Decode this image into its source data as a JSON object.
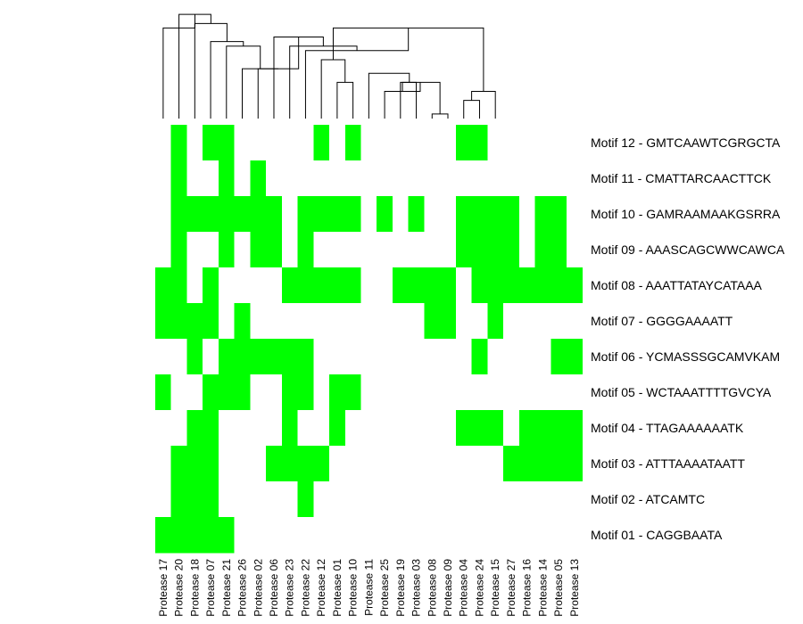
{
  "chart_data": {
    "type": "heatmap",
    "title": "",
    "xlabel": "",
    "ylabel": "",
    "colors": {
      "present": "#00ff00",
      "absent": "#ffffff",
      "dendrogram": "#000000"
    },
    "columns": [
      "Protease 17",
      "Protease 20",
      "Protease 18",
      "Protease 07",
      "Protease 21",
      "Protease 26",
      "Protease 02",
      "Protease 06",
      "Protease 23",
      "Protease 22",
      "Protease 12",
      "Protease 01",
      "Protease 10",
      "Protease 11",
      "Protease 25",
      "Protease 19",
      "Protease 03",
      "Protease 08",
      "Protease 09",
      "Protease 04",
      "Protease 24",
      "Protease 15",
      "Protease 27",
      "Protease 16",
      "Protease 14",
      "Protease 05",
      "Protease 13"
    ],
    "rows": [
      "Motif 12 - GMTCAAWTCGRGCTA",
      "Motif 11 - CMATTARCAACTTCK",
      "Motif 10 - GAMRAAMAAKGSRRA",
      "Motif 09 - AAASCAGCWWCAWCA",
      "Motif 08 - AAATTATAYCATAAA",
      "Motif 07 - GGGGAAAATT",
      "Motif 06 - YCMASSSGCAMVKAM",
      "Motif 05 - WCTAAATTTTGVCYA",
      "Motif 04 - TTAGAAAAAATK",
      "Motif 03 - ATTTAAAATAATT",
      "Motif 02 - ATCAMTC",
      "Motif 01 - CAGGBAATA"
    ],
    "matrix": [
      [
        0,
        1,
        0,
        1,
        1,
        0,
        0,
        0,
        0,
        0,
        1,
        0,
        1,
        0,
        0,
        0,
        0,
        0,
        0,
        1,
        1,
        0,
        0,
        0,
        0,
        0,
        0
      ],
      [
        0,
        1,
        0,
        0,
        1,
        0,
        1,
        0,
        0,
        0,
        0,
        0,
        0,
        0,
        0,
        0,
        0,
        0,
        0,
        0,
        0,
        0,
        0,
        0,
        0,
        0,
        0
      ],
      [
        0,
        1,
        1,
        1,
        1,
        1,
        1,
        1,
        0,
        1,
        1,
        1,
        1,
        0,
        1,
        0,
        1,
        0,
        0,
        1,
        1,
        1,
        1,
        0,
        1,
        1,
        0
      ],
      [
        0,
        1,
        0,
        0,
        1,
        0,
        1,
        1,
        0,
        1,
        0,
        0,
        0,
        0,
        0,
        0,
        0,
        0,
        0,
        1,
        1,
        1,
        1,
        0,
        1,
        1,
        0
      ],
      [
        1,
        1,
        0,
        1,
        0,
        0,
        0,
        0,
        1,
        1,
        1,
        1,
        1,
        0,
        0,
        1,
        1,
        1,
        1,
        0,
        1,
        1,
        1,
        1,
        1,
        1,
        1
      ],
      [
        1,
        1,
        1,
        1,
        0,
        1,
        0,
        0,
        0,
        0,
        0,
        0,
        0,
        0,
        0,
        0,
        0,
        1,
        1,
        0,
        0,
        1,
        0,
        0,
        0,
        0,
        0
      ],
      [
        0,
        0,
        1,
        0,
        1,
        1,
        1,
        1,
        1,
        1,
        0,
        0,
        0,
        0,
        0,
        0,
        0,
        0,
        0,
        0,
        1,
        0,
        0,
        0,
        0,
        1,
        1
      ],
      [
        1,
        0,
        0,
        1,
        1,
        1,
        0,
        0,
        1,
        1,
        0,
        1,
        1,
        0,
        0,
        0,
        0,
        0,
        0,
        0,
        0,
        0,
        0,
        0,
        0,
        0,
        0
      ],
      [
        0,
        0,
        1,
        1,
        0,
        0,
        0,
        0,
        1,
        0,
        0,
        1,
        0,
        0,
        0,
        0,
        0,
        0,
        0,
        1,
        1,
        1,
        0,
        1,
        1,
        1,
        1
      ],
      [
        0,
        1,
        1,
        1,
        0,
        0,
        0,
        1,
        1,
        1,
        1,
        0,
        0,
        0,
        0,
        0,
        0,
        0,
        0,
        0,
        0,
        0,
        1,
        1,
        1,
        1,
        1
      ],
      [
        0,
        1,
        1,
        1,
        0,
        0,
        0,
        0,
        0,
        1,
        0,
        0,
        0,
        0,
        0,
        0,
        0,
        0,
        0,
        0,
        0,
        0,
        0,
        0,
        0,
        0,
        0
      ],
      [
        1,
        1,
        1,
        1,
        1,
        0,
        0,
        0,
        0,
        0,
        0,
        0,
        0,
        0,
        0,
        0,
        0,
        0,
        0,
        0,
        0,
        0,
        0,
        0,
        0,
        0,
        0
      ]
    ],
    "column_dendrogram": {
      "merges": [
        [
          19,
          20,
          0.4
        ],
        [
          19,
          21,
          0.6
        ],
        [
          20,
          22,
          0.8
        ],
        [
          21,
          23,
          0.8
        ],
        [
          17,
          18,
          0.1
        ],
        [
          15,
          17,
          0.8
        ],
        [
          14,
          15,
          0.6
        ],
        [
          14,
          16,
          0.8
        ],
        [
          11,
          12,
          0.8
        ],
        [
          13,
          14,
          1.0
        ],
        [
          12,
          13,
          1.6
        ],
        [
          11,
          20,
          1.6
        ],
        [
          11,
          18,
          1.8
        ],
        [
          10,
          11,
          1.3
        ],
        [
          10,
          19,
          2.0
        ],
        [
          10,
          17,
          1.6
        ],
        [
          9,
          10,
          1.5
        ],
        [
          8,
          9,
          1.6
        ],
        [
          7,
          8,
          1.8
        ],
        [
          6,
          7,
          1.1
        ],
        [
          5,
          6,
          1.1
        ],
        [
          4,
          5,
          1.6
        ],
        [
          3,
          4,
          1.7
        ],
        [
          2,
          3,
          2.1
        ],
        [
          1,
          2,
          2.3
        ],
        [
          0,
          1,
          2.0
        ]
      ],
      "height_max": 2.5
    }
  }
}
